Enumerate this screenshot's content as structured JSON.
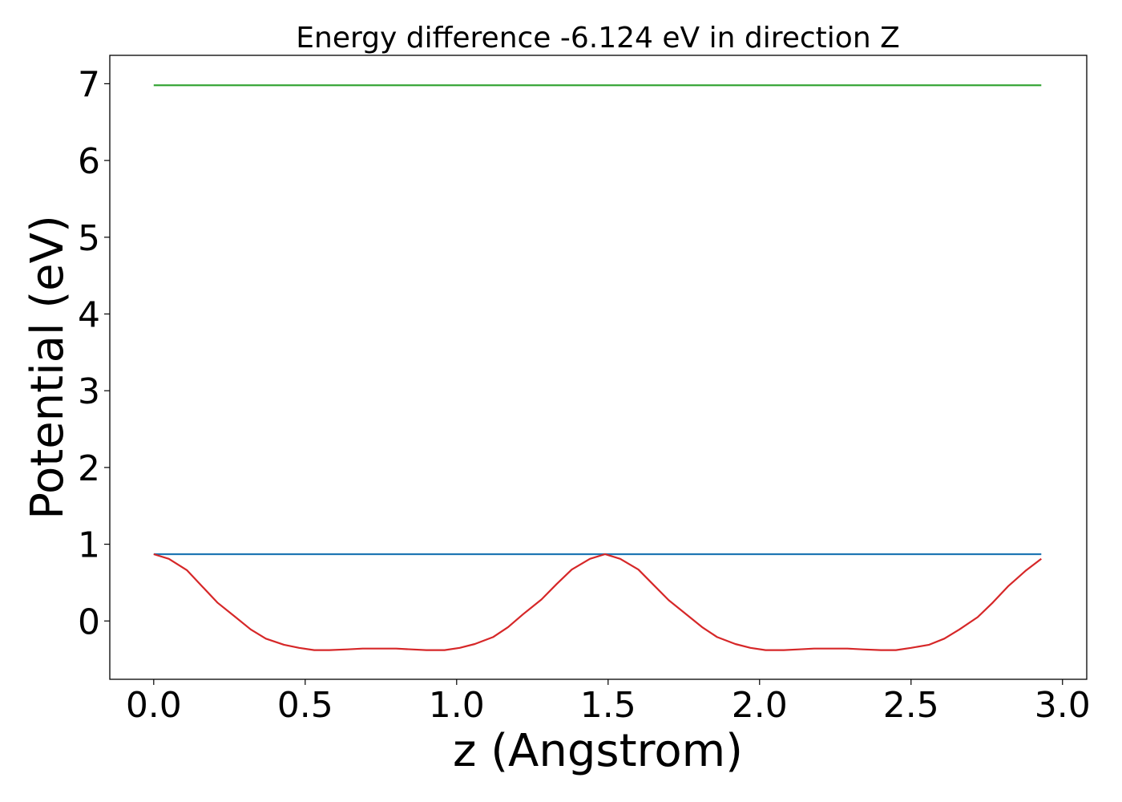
{
  "chart_data": {
    "type": "line",
    "title": "Energy difference -6.124 eV in direction Z",
    "xlabel": "z (Angstrom)",
    "ylabel": "Potential (eV)",
    "xlim": [
      -0.145,
      3.08
    ],
    "ylim": [
      -0.76,
      7.37
    ],
    "xticks": [
      0.0,
      0.5,
      1.0,
      1.5,
      2.0,
      2.5,
      3.0
    ],
    "xtick_labels": [
      "0.0",
      "0.5",
      "1.0",
      "1.5",
      "2.0",
      "2.5",
      "3.0"
    ],
    "yticks": [
      0,
      1,
      2,
      3,
      4,
      5,
      6,
      7
    ],
    "ytick_labels": [
      "0",
      "1",
      "2",
      "3",
      "4",
      "5",
      "6",
      "7"
    ],
    "grid": false,
    "legend": "none",
    "series": [
      {
        "color": "#d62728",
        "x": [
          0.0,
          0.05,
          0.11,
          0.16,
          0.21,
          0.27,
          0.32,
          0.37,
          0.43,
          0.48,
          0.53,
          0.58,
          0.64,
          0.69,
          0.74,
          0.8,
          0.85,
          0.9,
          0.96,
          1.01,
          1.06,
          1.12,
          1.17,
          1.22,
          1.28,
          1.33,
          1.38,
          1.44,
          1.49,
          1.54,
          1.6,
          1.65,
          1.7,
          1.76,
          1.81,
          1.86,
          1.92,
          1.97,
          2.02,
          2.08,
          2.13,
          2.18,
          2.24,
          2.29,
          2.34,
          2.4,
          2.45,
          2.5,
          2.56,
          2.61,
          2.66,
          2.72,
          2.77,
          2.82,
          2.88,
          2.93
        ],
        "values": [
          0.87,
          0.81,
          0.66,
          0.45,
          0.24,
          0.05,
          -0.11,
          -0.23,
          -0.31,
          -0.35,
          -0.38,
          -0.38,
          -0.37,
          -0.36,
          -0.36,
          -0.36,
          -0.37,
          -0.38,
          -0.38,
          -0.35,
          -0.3,
          -0.21,
          -0.08,
          0.09,
          0.28,
          0.48,
          0.67,
          0.81,
          0.87,
          0.81,
          0.67,
          0.47,
          0.27,
          0.08,
          -0.08,
          -0.21,
          -0.3,
          -0.35,
          -0.38,
          -0.38,
          -0.37,
          -0.36,
          -0.36,
          -0.36,
          -0.37,
          -0.38,
          -0.38,
          -0.35,
          -0.31,
          -0.23,
          -0.11,
          0.05,
          0.24,
          0.45,
          0.66,
          0.81
        ]
      },
      {
        "color": "#1f77b4",
        "x": [
          0.0,
          2.93
        ],
        "values": [
          0.87,
          0.87
        ]
      },
      {
        "color": "#2ca02c",
        "x": [
          0.0,
          2.93
        ],
        "values": [
          6.98,
          6.98
        ]
      }
    ]
  }
}
